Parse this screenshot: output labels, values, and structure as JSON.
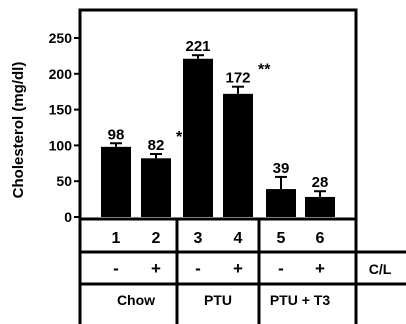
{
  "chart_data": {
    "type": "bar",
    "ylabel": "Cholesterol (mg/dl)",
    "ylim": [
      0,
      250
    ],
    "yticks": [
      0,
      50,
      100,
      150,
      200,
      250
    ],
    "categories": [
      "1",
      "2",
      "3",
      "4",
      "5",
      "6"
    ],
    "values": [
      98,
      82,
      221,
      172,
      39,
      28
    ],
    "error": [
      5,
      6,
      5,
      10,
      17,
      8
    ],
    "value_labels": [
      "98",
      "82",
      "221",
      "172",
      "39",
      "28"
    ],
    "significance": [
      "",
      "*",
      "",
      "**",
      "",
      ""
    ],
    "cl_row": {
      "label": "C/L",
      "values": [
        "-",
        "+",
        "-",
        "+",
        "-",
        "+"
      ]
    },
    "groups": [
      "Chow",
      "PTU",
      "PTU + T3"
    ],
    "bar_color": "#000000"
  }
}
